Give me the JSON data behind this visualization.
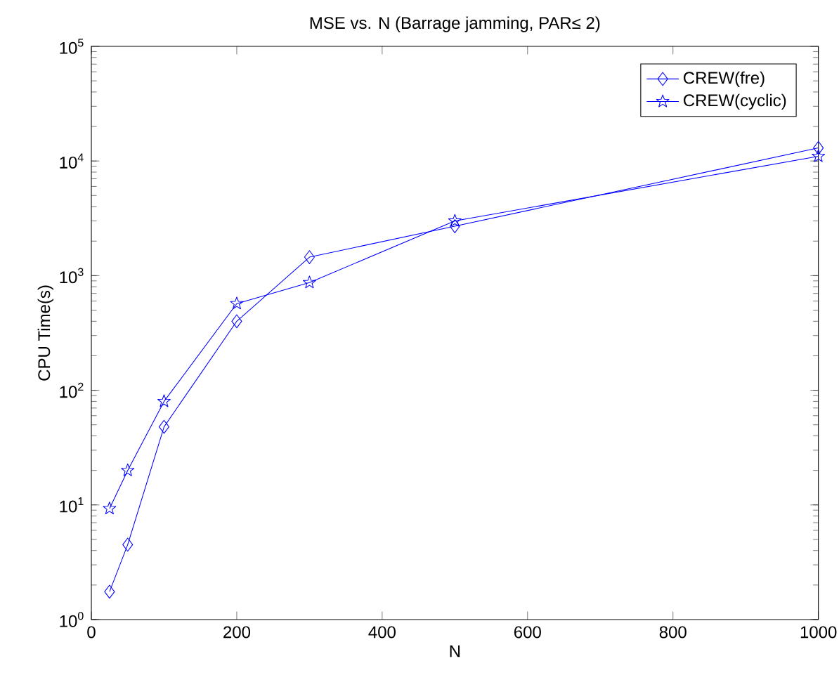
{
  "chart_data": {
    "type": "line",
    "title": "MSE vs. N (Barrage jamming, PAR≤ 2)",
    "xlabel": "N",
    "ylabel": "CPU Time(s)",
    "log": "y",
    "xlim": [
      0,
      1000
    ],
    "xticks": [
      0,
      200,
      400,
      600,
      800,
      1000
    ],
    "ylim": [
      1,
      100000
    ],
    "yticks": [
      {
        "value": 1,
        "label": "10$^{0}$"
      },
      {
        "value": 10,
        "label": "10$^{1}$"
      },
      {
        "value": 100,
        "label": "10$^{2}$"
      },
      {
        "value": 1000,
        "label": "10$^{3}$"
      },
      {
        "value": 10000,
        "label": "10$^{4}$"
      },
      {
        "value": 100000,
        "label": "10$^{5}$"
      }
    ],
    "x": [
      25,
      50,
      100,
      200,
      300,
      500,
      1000
    ],
    "legend": "top right",
    "grid": false,
    "line_style": "solid",
    "series": [
      {
        "name": "CREW(fre)",
        "color": "#0000ff",
        "marker": "diamond",
        "values": [
          1.75,
          4.5,
          48,
          400,
          1450,
          2700,
          13000
        ]
      },
      {
        "name": "CREW(cyclic)",
        "color": "#0000ff",
        "marker": "star",
        "values": [
          9.3,
          20,
          80,
          570,
          870,
          3000,
          11000
        ]
      }
    ]
  }
}
